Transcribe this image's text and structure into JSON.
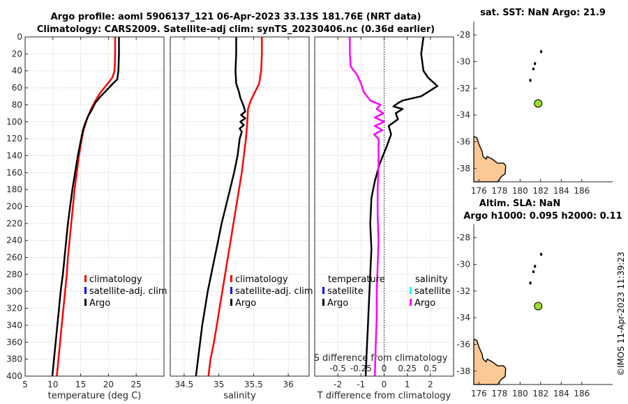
{
  "figure": {
    "title_line1": "Argo profile: aoml 5906137_121 06-Apr-2023 33.13S 181.76E (NRT data)",
    "title_line2": "Climatology: CARS2009. Satellite-adj clim: synTS_20230406.nc (0.36d earlier)",
    "sst_title": "sat. SST: NaN Argo: 21.9",
    "sla_title_line1": "Altim. SLA: NaN",
    "sla_title_line2": "Argo h1000: 0.095 h2000: 0.11",
    "watermark": "©IMOS 11-Apr-2023 11:39:23"
  },
  "colors": {
    "argo": "#000000",
    "climatology": "#ff0000",
    "satellite": "#0000ff",
    "salinity_argo": "#ff00ff",
    "salinity_satellite": "#00ffff",
    "land": "#fcc996",
    "point": "#99e02a"
  },
  "chart_data": [
    {
      "id": "temperature",
      "type": "line",
      "xlabel": "temperature (deg C)",
      "ylabel": "",
      "xlim": [
        5,
        30
      ],
      "ylim": [
        0,
        400
      ],
      "y_reversed": true,
      "xticks": [
        5,
        10,
        15,
        20,
        25
      ],
      "yticks": [
        0,
        20,
        40,
        60,
        80,
        100,
        120,
        140,
        160,
        180,
        200,
        220,
        240,
        260,
        280,
        300,
        320,
        340,
        360,
        380,
        400
      ],
      "grid": true,
      "legend": [
        "climatology",
        "satellite-adj. clim",
        "Argo"
      ],
      "series": [
        {
          "name": "climatology",
          "color": "#ff0000",
          "points": [
            [
              21.2,
              0
            ],
            [
              21.2,
              20
            ],
            [
              21.1,
              40
            ],
            [
              20.7,
              48
            ],
            [
              19.5,
              58
            ],
            [
              18.5,
              66
            ],
            [
              17.6,
              76
            ],
            [
              16.8,
              86
            ],
            [
              16.2,
              96
            ],
            [
              15.6,
              108
            ],
            [
              15.2,
              120
            ],
            [
              14.7,
              140
            ],
            [
              14.3,
              160
            ],
            [
              13.9,
              180
            ],
            [
              13.6,
              200
            ],
            [
              13.3,
              220
            ],
            [
              13.0,
              240
            ],
            [
              12.7,
              260
            ],
            [
              12.5,
              280
            ],
            [
              12.2,
              300
            ],
            [
              11.9,
              320
            ],
            [
              11.6,
              340
            ],
            [
              11.3,
              360
            ],
            [
              11.0,
              380
            ],
            [
              10.7,
              400
            ]
          ]
        },
        {
          "name": "Argo",
          "color": "#000000",
          "points": [
            [
              21.9,
              0
            ],
            [
              21.9,
              20
            ],
            [
              21.8,
              40
            ],
            [
              21.6,
              50
            ],
            [
              20.8,
              55
            ],
            [
              19.8,
              62
            ],
            [
              18.6,
              70
            ],
            [
              17.6,
              78
            ],
            [
              17.0,
              86
            ],
            [
              16.3,
              94
            ],
            [
              15.8,
              102
            ],
            [
              15.4,
              110
            ],
            [
              15.1,
              120
            ],
            [
              14.5,
              140
            ],
            [
              14.0,
              160
            ],
            [
              13.5,
              180
            ],
            [
              13.1,
              200
            ],
            [
              12.7,
              220
            ],
            [
              12.4,
              240
            ],
            [
              12.1,
              260
            ],
            [
              11.8,
              280
            ],
            [
              11.4,
              300
            ],
            [
              11.1,
              320
            ],
            [
              10.8,
              340
            ],
            [
              10.5,
              360
            ],
            [
              10.2,
              380
            ],
            [
              9.9,
              400
            ]
          ]
        }
      ]
    },
    {
      "id": "salinity",
      "type": "line",
      "xlabel": "salinity",
      "ylabel": "",
      "xlim": [
        34.3,
        36.3
      ],
      "ylim": [
        0,
        400
      ],
      "y_reversed": true,
      "xticks": [
        34.5,
        35,
        35.5,
        36
      ],
      "xticklabels": [
        "34.5",
        "35",
        "35.5",
        "36"
      ],
      "grid": true,
      "legend": [
        "climatology",
        "satellite-adj. clim",
        "Argo"
      ],
      "series": [
        {
          "name": "climatology",
          "color": "#ff0000",
          "points": [
            [
              35.62,
              0
            ],
            [
              35.62,
              20
            ],
            [
              35.61,
              40
            ],
            [
              35.58,
              55
            ],
            [
              35.52,
              65
            ],
            [
              35.46,
              75
            ],
            [
              35.42,
              85
            ],
            [
              35.41,
              100
            ],
            [
              35.39,
              120
            ],
            [
              35.36,
              140
            ],
            [
              35.33,
              160
            ],
            [
              35.29,
              180
            ],
            [
              35.25,
              200
            ],
            [
              35.21,
              220
            ],
            [
              35.17,
              240
            ],
            [
              35.13,
              260
            ],
            [
              35.09,
              280
            ],
            [
              35.05,
              300
            ],
            [
              35.01,
              320
            ],
            [
              34.97,
              340
            ],
            [
              34.93,
              360
            ],
            [
              34.88,
              380
            ],
            [
              34.85,
              400
            ]
          ]
        },
        {
          "name": "Argo",
          "color": "#000000",
          "points": [
            [
              35.25,
              0
            ],
            [
              35.25,
              20
            ],
            [
              35.24,
              40
            ],
            [
              35.25,
              55
            ],
            [
              35.29,
              65
            ],
            [
              35.31,
              72
            ],
            [
              35.35,
              80
            ],
            [
              35.38,
              88
            ],
            [
              35.32,
              92
            ],
            [
              35.38,
              96
            ],
            [
              35.31,
              100
            ],
            [
              35.36,
              104
            ],
            [
              35.3,
              108
            ],
            [
              35.33,
              112
            ],
            [
              35.3,
              120
            ],
            [
              35.27,
              140
            ],
            [
              35.22,
              160
            ],
            [
              35.16,
              180
            ],
            [
              35.1,
              200
            ],
            [
              35.04,
              220
            ],
            [
              34.99,
              240
            ],
            [
              34.94,
              260
            ],
            [
              34.89,
              280
            ],
            [
              34.84,
              300
            ],
            [
              34.8,
              320
            ],
            [
              34.76,
              340
            ],
            [
              34.73,
              360
            ],
            [
              34.7,
              380
            ],
            [
              34.67,
              400
            ]
          ]
        }
      ]
    },
    {
      "id": "difference",
      "type": "line",
      "xlabel": "T difference from climatology",
      "x2label": "S difference from climatology",
      "xlim": [
        -3,
        3
      ],
      "x2lim": [
        -0.75,
        0.75
      ],
      "ylim": [
        0,
        400
      ],
      "y_reversed": true,
      "xticks": [
        -2,
        -1,
        0,
        1,
        2
      ],
      "x2ticks": [
        -0.5,
        -0.25,
        0,
        0.25,
        0.5
      ],
      "x2ticklabels": [
        "-0.5",
        "-0.25",
        "0",
        "0.25",
        "0.5"
      ],
      "grid": true,
      "legend_temperature": [
        "temperature",
        "satellite",
        "Argo"
      ],
      "legend_salinity": [
        "salinity",
        "satellite",
        "Argo"
      ],
      "series": [
        {
          "name": "T Argo",
          "color": "#000000",
          "points": [
            [
              1.7,
              0
            ],
            [
              1.6,
              20
            ],
            [
              1.7,
              40
            ],
            [
              1.9,
              48
            ],
            [
              2.3,
              58
            ],
            [
              1.6,
              70
            ],
            [
              0.8,
              75
            ],
            [
              0.6,
              78
            ],
            [
              0.4,
              82
            ],
            [
              0.8,
              85
            ],
            [
              0.5,
              90
            ],
            [
              0.6,
              97
            ],
            [
              0.2,
              105
            ],
            [
              0.3,
              115
            ],
            [
              0.1,
              130
            ],
            [
              -0.2,
              150
            ],
            [
              -0.4,
              170
            ],
            [
              -0.55,
              190
            ],
            [
              -0.6,
              220
            ],
            [
              -0.55,
              250
            ],
            [
              -0.6,
              280
            ],
            [
              -0.65,
              310
            ],
            [
              -0.7,
              340
            ],
            [
              -0.75,
              370
            ],
            [
              -0.8,
              400
            ]
          ]
        },
        {
          "name": "S Argo",
          "color": "#ff00ff",
          "points": [
            [
              -0.37,
              0
            ],
            [
              -0.37,
              20
            ],
            [
              -0.36,
              35
            ],
            [
              -0.29,
              45
            ],
            [
              -0.25,
              55
            ],
            [
              -0.22,
              65
            ],
            [
              -0.15,
              75
            ],
            [
              -0.04,
              80
            ],
            [
              -0.08,
              85
            ],
            [
              -0.01,
              90
            ],
            [
              -0.1,
              95
            ],
            [
              0.0,
              100
            ],
            [
              -0.1,
              105
            ],
            [
              -0.02,
              110
            ],
            [
              -0.11,
              115
            ],
            [
              -0.06,
              120
            ],
            [
              -0.06,
              150
            ],
            [
              -0.07,
              180
            ],
            [
              -0.07,
              210
            ],
            [
              -0.06,
              240
            ],
            [
              -0.07,
              270
            ],
            [
              -0.08,
              300
            ],
            [
              -0.08,
              330
            ],
            [
              -0.09,
              360
            ],
            [
              -0.1,
              400
            ]
          ]
        }
      ]
    },
    {
      "id": "sst_map",
      "type": "scatter",
      "title": "sat. SST: NaN Argo: 21.9",
      "xlim": [
        175.5,
        189
      ],
      "ylim": [
        -39,
        -27
      ],
      "xticks": [
        176,
        178,
        180,
        182,
        184,
        186
      ],
      "yticks": [
        -28,
        -30,
        -32,
        -34,
        -36,
        -38
      ],
      "points": [
        {
          "x": 181.76,
          "y": -33.13
        }
      ],
      "islands": [
        {
          "x": 182.05,
          "y": -29.25
        },
        {
          "x": 181.45,
          "y": -30.15
        },
        {
          "x": 181.3,
          "y": -30.55
        },
        {
          "x": 181.0,
          "y": -31.4
        }
      ]
    },
    {
      "id": "sla_map",
      "type": "scatter",
      "title": "Altim. SLA: NaN",
      "xlim": [
        175.5,
        189
      ],
      "ylim": [
        -39,
        -27
      ],
      "xticks": [
        176,
        178,
        180,
        182,
        184,
        186
      ],
      "yticks": [
        -28,
        -30,
        -32,
        -34,
        -36,
        -38
      ],
      "points": [
        {
          "x": 181.76,
          "y": -33.13
        }
      ],
      "islands": [
        {
          "x": 182.05,
          "y": -29.25
        },
        {
          "x": 181.45,
          "y": -30.15
        },
        {
          "x": 181.3,
          "y": -30.55
        },
        {
          "x": 181.0,
          "y": -31.4
        }
      ]
    }
  ],
  "coastline": [
    [
      175.5,
      -35.6
    ],
    [
      175.8,
      -35.7
    ],
    [
      176.0,
      -36.2
    ],
    [
      176.3,
      -36.7
    ],
    [
      176.4,
      -37.1
    ],
    [
      176.7,
      -37.3
    ],
    [
      176.8,
      -37.1
    ],
    [
      177.3,
      -37.3
    ],
    [
      177.8,
      -37.6
    ],
    [
      178.4,
      -37.6
    ],
    [
      178.6,
      -37.8
    ],
    [
      178.55,
      -38.4
    ],
    [
      178.2,
      -38.6
    ],
    [
      177.9,
      -38.9
    ],
    [
      177.85,
      -39.0
    ],
    [
      175.5,
      -39.0
    ]
  ]
}
